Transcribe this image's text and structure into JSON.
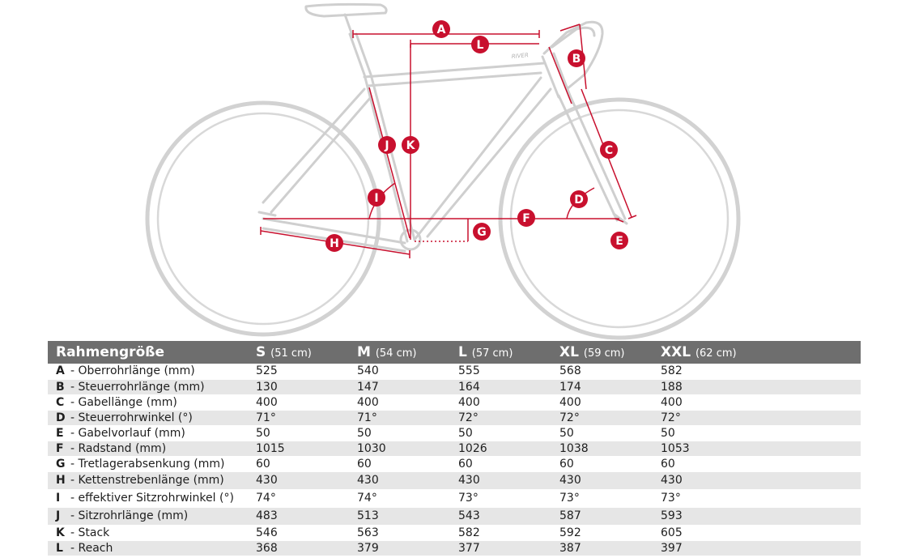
{
  "diagram": {
    "frame_logo": "RIVER",
    "labels": [
      "A",
      "B",
      "C",
      "D",
      "E",
      "F",
      "G",
      "H",
      "I",
      "J",
      "K",
      "L"
    ],
    "accent_color": "#c8102e",
    "frame_color": "#cfcfcf"
  },
  "table": {
    "header": {
      "param": "Rahmengröße",
      "sizes": [
        {
          "size": "S",
          "cm": "(51 cm)"
        },
        {
          "size": "M",
          "cm": "(54 cm)"
        },
        {
          "size": "L",
          "cm": "(57 cm)"
        },
        {
          "size": "XL",
          "cm": "(59 cm)"
        },
        {
          "size": "XXL",
          "cm": "(62 cm)"
        }
      ]
    },
    "rows": [
      {
        "letter": "A",
        "label": "- Oberrohrlänge (mm)",
        "values": [
          "525",
          "540",
          "555",
          "568",
          "582"
        ]
      },
      {
        "letter": "B",
        "label": "- Steuerrohrlänge (mm)",
        "values": [
          "130",
          "147",
          "164",
          "174",
          "188"
        ]
      },
      {
        "letter": "C",
        "label": "- Gabellänge (mm)",
        "values": [
          "400",
          "400",
          "400",
          "400",
          "400"
        ]
      },
      {
        "letter": "D",
        "label": "- Steuerrohrwinkel (°)",
        "values": [
          "71°",
          "71°",
          "72°",
          "72°",
          "72°"
        ]
      },
      {
        "letter": "E",
        "label": "- Gabelvorlauf (mm)",
        "values": [
          "50",
          "50",
          "50",
          "50",
          "50"
        ]
      },
      {
        "letter": "F",
        "label": "- Radstand (mm)",
        "values": [
          "1015",
          "1030",
          "1026",
          "1038",
          "1053"
        ]
      },
      {
        "letter": "G",
        "label": "- Tretlagerabsenkung (mm)",
        "values": [
          "60",
          "60",
          "60",
          "60",
          "60"
        ]
      },
      {
        "letter": "H",
        "label": "- Kettenstrebenlänge (mm)",
        "values": [
          "430",
          "430",
          "430",
          "430",
          "430"
        ]
      },
      {
        "letter": "I",
        "label": "- effektiver Sitzrohrwinkel (°)",
        "values": [
          "74°",
          "74°",
          "73°",
          "73°",
          "73°"
        ]
      },
      {
        "letter": "J",
        "label": "- Sitzrohrlänge (mm)",
        "values": [
          "483",
          "513",
          "543",
          "587",
          "593"
        ]
      },
      {
        "letter": "K",
        "label": "- Stack",
        "values": [
          "546",
          "563",
          "582",
          "592",
          "605"
        ]
      },
      {
        "letter": "L",
        "label": "- Reach",
        "values": [
          "368",
          "379",
          "377",
          "387",
          "397"
        ]
      }
    ]
  }
}
